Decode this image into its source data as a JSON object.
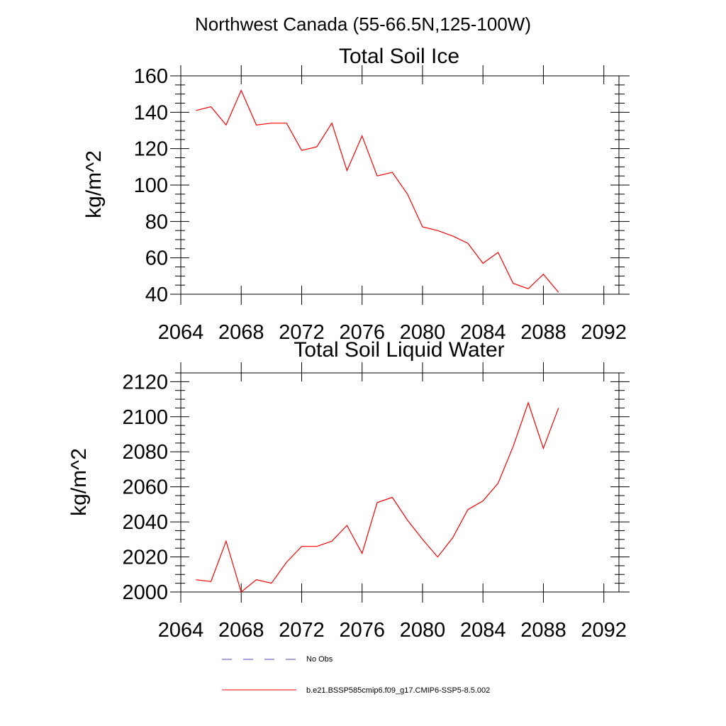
{
  "figure": {
    "title": "Northwest Canada (55-66.5N,125-100W)"
  },
  "chart_data": [
    {
      "type": "line",
      "title": "Total Soil Ice",
      "xlabel": "",
      "ylabel": "kg/m^2",
      "xlim": [
        2064,
        2093
      ],
      "ylim": [
        40,
        160
      ],
      "xticks": [
        2064,
        2068,
        2072,
        2076,
        2080,
        2084,
        2088,
        2092
      ],
      "yticks": [
        40,
        60,
        80,
        100,
        120,
        140,
        160
      ],
      "grid": false,
      "series": [
        {
          "name": "b.e21.BSSP585cmip6.f09_g17.CMIP6-SSP5-8.5.002",
          "color": "#ff0000",
          "x": [
            2065,
            2066,
            2067,
            2068,
            2069,
            2070,
            2071,
            2072,
            2073,
            2074,
            2075,
            2076,
            2077,
            2078,
            2079,
            2080,
            2081,
            2082,
            2083,
            2084,
            2085,
            2086,
            2087,
            2088,
            2089
          ],
          "values": [
            141,
            143,
            133,
            152,
            133,
            134,
            134,
            119,
            121,
            134,
            108,
            127,
            105,
            107,
            95,
            77,
            75,
            72,
            68,
            57,
            63,
            46,
            43,
            51,
            41
          ]
        }
      ]
    },
    {
      "type": "line",
      "title": "Total Soil Liquid Water",
      "xlabel": "",
      "ylabel": "kg/m^2",
      "xlim": [
        2064,
        2093
      ],
      "ylim": [
        2000,
        2125
      ],
      "xticks": [
        2064,
        2068,
        2072,
        2076,
        2080,
        2084,
        2088,
        2092
      ],
      "yticks": [
        2000,
        2020,
        2040,
        2060,
        2080,
        2100,
        2120
      ],
      "grid": false,
      "series": [
        {
          "name": "b.e21.BSSP585cmip6.f09_g17.CMIP6-SSP5-8.5.002",
          "color": "#ff0000",
          "x": [
            2065,
            2066,
            2067,
            2068,
            2069,
            2070,
            2071,
            2072,
            2073,
            2074,
            2075,
            2076,
            2077,
            2078,
            2079,
            2080,
            2081,
            2082,
            2083,
            2084,
            2085,
            2086,
            2087,
            2088,
            2089
          ],
          "values": [
            2007,
            2006,
            2029,
            2000,
            2007,
            2005,
            2017,
            2026,
            2026,
            2029,
            2038,
            2022,
            2051,
            2054,
            2041,
            2030,
            2020,
            2031,
            2047,
            2052,
            2062,
            2083,
            2108,
            2082,
            2105
          ]
        }
      ]
    }
  ],
  "legend": {
    "placement": "bottom",
    "items": [
      {
        "label": "No Obs",
        "color": "#4a4ab0",
        "style": "dashed"
      },
      {
        "label": "b.e21.BSSP585cmip6.f09_g17.CMIP6-SSP5-8.5.002",
        "color": "#ff0000",
        "style": "solid"
      }
    ]
  }
}
